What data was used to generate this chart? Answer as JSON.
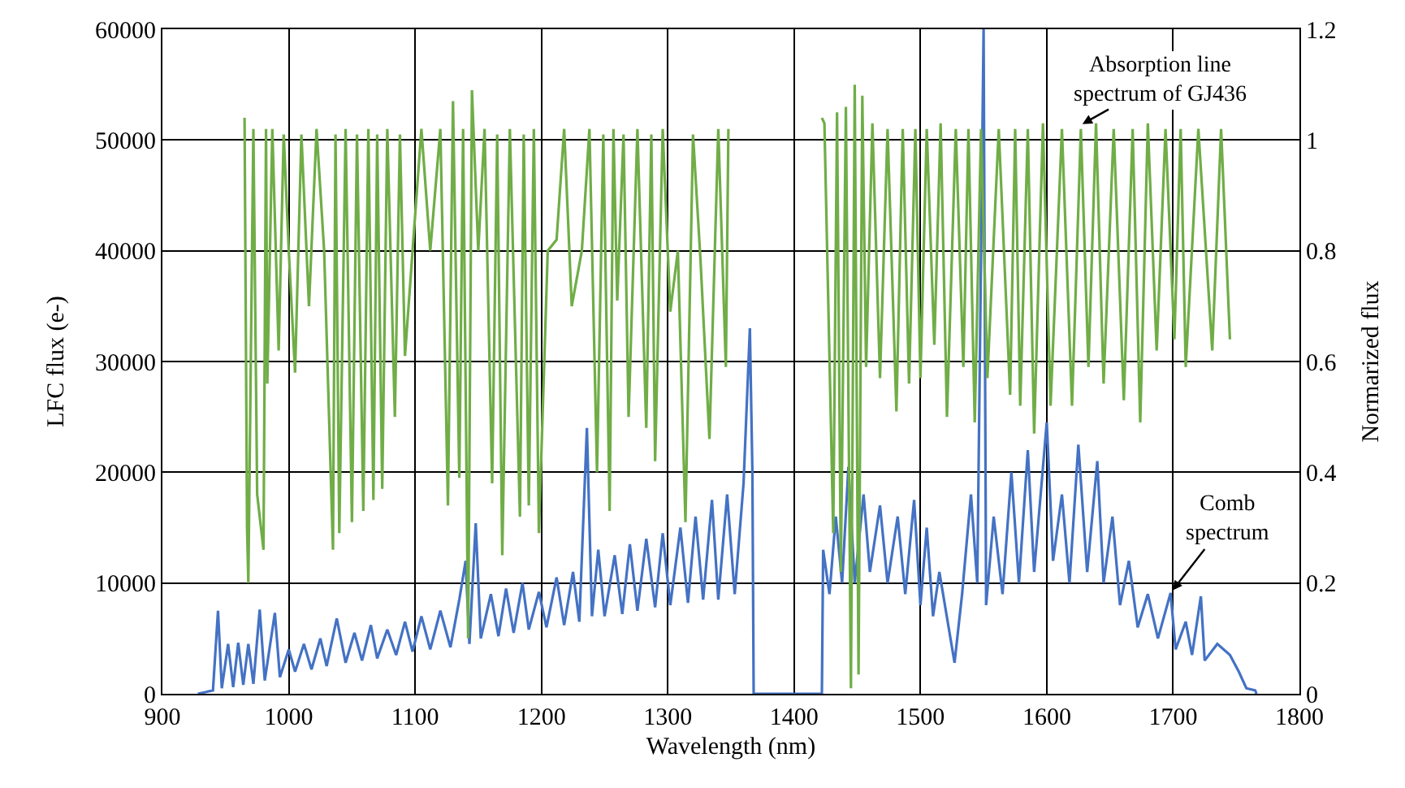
{
  "chart_data": {
    "type": "line",
    "xlabel": "Wavelength (nm)",
    "ylabel": "LFC flux (e-)",
    "y2label": "Normarized flux",
    "xlim": [
      900,
      1800
    ],
    "xticks": [
      900,
      1000,
      1100,
      1200,
      1300,
      1400,
      1500,
      1600,
      1700,
      1800
    ],
    "ylim": [
      0,
      60000
    ],
    "yticks": [
      0,
      10000,
      20000,
      30000,
      40000,
      50000,
      60000
    ],
    "y2lim": [
      0,
      1.2
    ],
    "y2ticks": [
      0,
      0.2,
      0.4,
      0.6,
      0.8,
      1,
      1.2
    ],
    "grid": true,
    "marker": "none",
    "line_style": "solid",
    "annotations": [
      {
        "text": "Absorption line\nspectrum of GJ436",
        "x": 1626,
        "y": 51300
      },
      {
        "text": "Comb\nspectrum",
        "x": 1698,
        "y": 9100
      }
    ],
    "series": [
      {
        "color": "#4472c4",
        "axis": "y",
        "x": [
          928,
          940,
          944,
          947,
          952,
          956,
          960,
          964,
          968,
          972,
          977,
          981,
          989,
          993,
          1000,
          1005,
          1012,
          1018,
          1025,
          1030,
          1038,
          1045,
          1052,
          1058,
          1065,
          1070,
          1078,
          1085,
          1092,
          1098,
          1105,
          1112,
          1120,
          1128,
          1135,
          1140,
          1143,
          1148,
          1152,
          1160,
          1166,
          1172,
          1178,
          1185,
          1190,
          1198,
          1204,
          1212,
          1218,
          1225,
          1230,
          1236,
          1240,
          1245,
          1250,
          1258,
          1264,
          1270,
          1276,
          1283,
          1290,
          1296,
          1302,
          1310,
          1316,
          1322,
          1328,
          1335,
          1340,
          1347,
          1353,
          1360,
          1365,
          1367,
          1368,
          1422,
          1423,
          1428,
          1433,
          1438,
          1443,
          1448,
          1455,
          1460,
          1468,
          1474,
          1482,
          1488,
          1495,
          1500,
          1505,
          1510,
          1515,
          1527,
          1533,
          1540,
          1545,
          1550,
          1552,
          1558,
          1565,
          1572,
          1578,
          1585,
          1590,
          1600,
          1605,
          1612,
          1618,
          1625,
          1632,
          1640,
          1645,
          1652,
          1658,
          1665,
          1672,
          1680,
          1688,
          1698,
          1702,
          1710,
          1715,
          1722,
          1725,
          1735,
          1745,
          1752,
          1758,
          1765,
          1766
        ],
        "values": [
          0,
          300,
          7500,
          500,
          4500,
          600,
          4600,
          800,
          4500,
          900,
          7600,
          1200,
          7300,
          1500,
          4000,
          2000,
          4500,
          2200,
          5000,
          2500,
          6800,
          2800,
          5500,
          3000,
          6200,
          3200,
          5800,
          3500,
          6500,
          3800,
          7000,
          4000,
          7500,
          4200,
          8500,
          12000,
          4500,
          15400,
          5000,
          9000,
          5200,
          9500,
          5500,
          10000,
          5800,
          9200,
          6000,
          10500,
          6200,
          11000,
          6500,
          24000,
          7000,
          13000,
          7000,
          12500,
          7200,
          13500,
          7500,
          14000,
          7800,
          14500,
          8000,
          15000,
          8200,
          16000,
          8500,
          17500,
          8500,
          18000,
          9000,
          19000,
          33000,
          20000,
          0,
          0,
          13000,
          9000,
          16000,
          10000,
          20500,
          10000,
          18000,
          11000,
          17000,
          10000,
          16000,
          9000,
          17500,
          8000,
          15000,
          7000,
          11000,
          2800,
          9000,
          18000,
          10000,
          60000,
          8000,
          16000,
          9000,
          20000,
          10000,
          22000,
          11000,
          24500,
          12000,
          18000,
          10000,
          22500,
          11000,
          21000,
          10000,
          16000,
          8000,
          12000,
          6000,
          9000,
          5000,
          9100,
          4000,
          6500,
          3500,
          8800,
          3000,
          4500,
          3500,
          2000,
          500,
          300,
          0
        ]
      },
      {
        "color": "#70ad47",
        "axis": "y2",
        "x": [
          965,
          967,
          968,
          972,
          975,
          980,
          982,
          983,
          987,
          992,
          996,
          1000,
          1005,
          1010,
          1016,
          1022,
          1028,
          1035,
          1037,
          1040,
          1045,
          1050,
          1054,
          1059,
          1063,
          1067,
          1070,
          1074,
          1078,
          1084,
          1088,
          1092,
          1098,
          1105,
          1112,
          1120,
          1126,
          1130,
          1135,
          1138,
          1142,
          1145,
          1150,
          1155,
          1161,
          1165,
          1169,
          1175,
          1183,
          1186,
          1190,
          1194,
          1198,
          1205,
          1212,
          1218,
          1224,
          1232,
          1238,
          1244,
          1249,
          1254,
          1257,
          1260,
          1265,
          1269,
          1276,
          1283,
          1287,
          1290,
          1296,
          1302,
          1308,
          1314,
          1320,
          1326,
          1333,
          1340,
          1346,
          1348,
          1349,
          1421,
          1422,
          1424,
          1431,
          1434,
          1437,
          1441,
          1445,
          1448,
          1451,
          1454,
          1457,
          1462,
          1468,
          1474,
          1481,
          1486,
          1491,
          1496,
          1500,
          1505,
          1511,
          1516,
          1521,
          1528,
          1534,
          1538,
          1543,
          1548,
          1553,
          1562,
          1571,
          1575,
          1579,
          1585,
          1590,
          1597,
          1603,
          1612,
          1620,
          1627,
          1633,
          1639,
          1645,
          1653,
          1661,
          1668,
          1674,
          1680,
          1687,
          1694,
          1701,
          1706,
          1710,
          1720,
          1731,
          1738,
          1745
        ],
        "values": [
          1.04,
          0.3,
          0.2,
          1.02,
          0.36,
          0.26,
          1.02,
          0.56,
          1.02,
          0.62,
          1.01,
          0.8,
          0.58,
          1.01,
          0.7,
          1.02,
          0.8,
          0.26,
          1.01,
          0.29,
          1.02,
          0.31,
          1.01,
          0.33,
          1.02,
          0.35,
          1.01,
          0.37,
          1.02,
          0.5,
          1.01,
          0.61,
          0.8,
          1.02,
          0.8,
          1.02,
          0.34,
          1.07,
          0.39,
          1.02,
          0.1,
          1.09,
          0.8,
          1.02,
          0.38,
          1.01,
          0.25,
          1.02,
          0.32,
          1.01,
          0.34,
          1.02,
          0.29,
          0.8,
          0.82,
          1.02,
          0.7,
          0.8,
          1.02,
          0.4,
          1.01,
          0.33,
          1.02,
          0.71,
          1.01,
          0.5,
          1.02,
          0.48,
          1.01,
          0.42,
          1.02,
          0.69,
          0.8,
          0.31,
          1.01,
          0.78,
          0.46,
          1.02,
          0.59,
          1.02,
          null,
          null,
          1.04,
          1.03,
          0.29,
          1.05,
          0.22,
          1.06,
          0.01,
          1.1,
          0.035,
          1.08,
          0.59,
          1.03,
          0.57,
          1.02,
          0.51,
          1.02,
          0.56,
          1.02,
          0.57,
          1.02,
          0.63,
          1.03,
          0.5,
          1.02,
          0.59,
          1.02,
          0.49,
          1.02,
          0.57,
          1.02,
          0.54,
          1.02,
          0.52,
          1.02,
          0.47,
          1.03,
          0.52,
          1.02,
          0.52,
          1.02,
          0.59,
          1.03,
          0.56,
          1.02,
          0.53,
          1.02,
          0.49,
          1.03,
          0.62,
          1.02,
          0.64,
          1.02,
          0.59,
          1.02,
          0.62,
          1.02,
          0.64
        ]
      }
    ]
  }
}
